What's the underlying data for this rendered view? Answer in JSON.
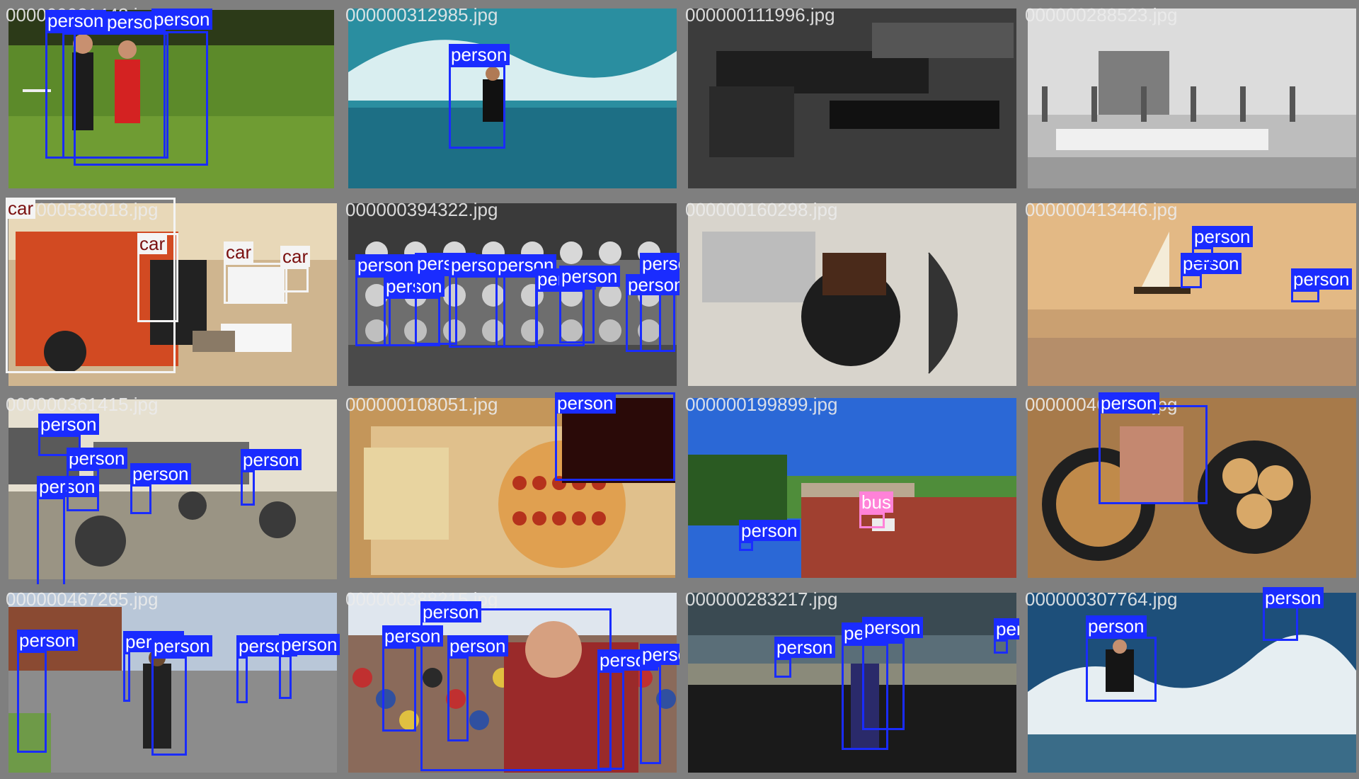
{
  "tiles": [
    {
      "filename": "000000031443.jpg",
      "scene": "field",
      "detections": [
        {
          "label": "person",
          "cls": "person"
        },
        {
          "label": "person",
          "cls": "person"
        },
        {
          "label": "person",
          "cls": "person"
        }
      ]
    },
    {
      "filename": "000000312985.jpg",
      "scene": "surf",
      "detections": [
        {
          "label": "person",
          "cls": "person"
        }
      ]
    },
    {
      "filename": "000000111996.jpg",
      "scene": "desk",
      "detections": []
    },
    {
      "filename": "000000288523.jpg",
      "scene": "harbor",
      "detections": []
    },
    {
      "filename": "000000538018.jpg",
      "scene": "street",
      "detections": [
        {
          "label": "car",
          "cls": "car"
        },
        {
          "label": "car",
          "cls": "car"
        },
        {
          "label": "car",
          "cls": "car"
        },
        {
          "label": "car",
          "cls": "car"
        }
      ]
    },
    {
      "filename": "000000394322.jpg",
      "scene": "classphoto",
      "detections": [
        {
          "label": "person",
          "cls": "person"
        },
        {
          "label": "person",
          "cls": "person"
        },
        {
          "label": "person",
          "cls": "person"
        },
        {
          "label": "person",
          "cls": "person"
        },
        {
          "label": "person",
          "cls": "person"
        },
        {
          "label": "person",
          "cls": "person"
        },
        {
          "label": "person",
          "cls": "person"
        },
        {
          "label": "person",
          "cls": "person"
        },
        {
          "label": "person",
          "cls": "person"
        }
      ]
    },
    {
      "filename": "000000160298.jpg",
      "scene": "gadgets",
      "detections": []
    },
    {
      "filename": "000000413446.jpg",
      "scene": "sunset",
      "detections": [
        {
          "label": "person",
          "cls": "person"
        },
        {
          "label": "person",
          "cls": "person"
        },
        {
          "label": "person",
          "cls": "person"
        }
      ]
    },
    {
      "filename": "000000361415.jpg",
      "scene": "carts",
      "detections": [
        {
          "label": "person",
          "cls": "person"
        },
        {
          "label": "person",
          "cls": "person"
        },
        {
          "label": "person",
          "cls": "person"
        },
        {
          "label": "person",
          "cls": "person"
        },
        {
          "label": "person",
          "cls": "person"
        }
      ]
    },
    {
      "filename": "000000108051.jpg",
      "scene": "pizza",
      "detections": [
        {
          "label": "person",
          "cls": "person"
        }
      ]
    },
    {
      "filename": "000000199899.jpg",
      "scene": "coast",
      "detections": [
        {
          "label": "person",
          "cls": "person"
        },
        {
          "label": "bus",
          "cls": "bus"
        }
      ]
    },
    {
      "filename": "000000467146.jpg",
      "scene": "pancakes",
      "detections": [
        {
          "label": "person",
          "cls": "person"
        }
      ]
    },
    {
      "filename": "000000467265.jpg",
      "scene": "road",
      "detections": [
        {
          "label": "person",
          "cls": "person"
        },
        {
          "label": "person",
          "cls": "person"
        },
        {
          "label": "person",
          "cls": "person"
        },
        {
          "label": "person",
          "cls": "person"
        },
        {
          "label": "person",
          "cls": "person"
        }
      ]
    },
    {
      "filename": "000000388215.jpg",
      "scene": "crowd",
      "detections": [
        {
          "label": "person",
          "cls": "person"
        },
        {
          "label": "person",
          "cls": "person"
        },
        {
          "label": "person",
          "cls": "person"
        },
        {
          "label": "person",
          "cls": "person"
        },
        {
          "label": "person",
          "cls": "person"
        }
      ]
    },
    {
      "filename": "000000283217.jpg",
      "scene": "storm",
      "detections": [
        {
          "label": "person",
          "cls": "person"
        },
        {
          "label": "person",
          "cls": "person"
        },
        {
          "label": "person",
          "cls": "person"
        },
        {
          "label": "person",
          "cls": "person"
        }
      ]
    },
    {
      "filename": "000000307764.jpg",
      "scene": "waves",
      "detections": [
        {
          "label": "person",
          "cls": "person"
        },
        {
          "label": "person",
          "cls": "person"
        }
      ]
    }
  ],
  "colors": {
    "person": "#1a2cff",
    "car": "#f4f4f4",
    "bus": "#ff82d8",
    "border": "#7f7f7f"
  }
}
